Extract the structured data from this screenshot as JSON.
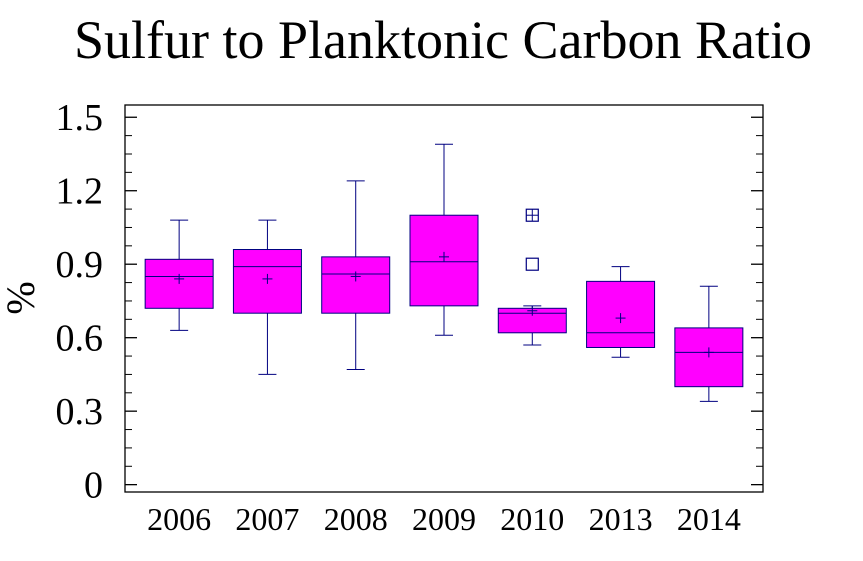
{
  "chart_data": {
    "type": "box",
    "title": "Sulfur to Planktonic Carbon Ratio",
    "xlabel": "",
    "ylabel": "%",
    "ylim": [
      -0.03,
      1.55
    ],
    "yticks": [
      0,
      0.3,
      0.6,
      0.9,
      1.2,
      1.5
    ],
    "ytick_labels": [
      "0",
      "0.3",
      "0.6",
      "0.9",
      "1.2",
      "1.5"
    ],
    "grid": false,
    "colors": {
      "box_fill": "#ff00ff",
      "box_stroke": "#000080",
      "axis": "#000000"
    },
    "categories": [
      "2006",
      "2007",
      "2008",
      "2009",
      "2010",
      "2013",
      "2014"
    ],
    "boxes": [
      {
        "category": "2006",
        "min": 0.63,
        "q1": 0.72,
        "median": 0.85,
        "mean": 0.84,
        "q3": 0.92,
        "max": 1.08,
        "outliers": []
      },
      {
        "category": "2007",
        "min": 0.45,
        "q1": 0.7,
        "median": 0.89,
        "mean": 0.84,
        "q3": 0.96,
        "max": 1.08,
        "outliers": []
      },
      {
        "category": "2008",
        "min": 0.47,
        "q1": 0.7,
        "median": 0.86,
        "mean": 0.85,
        "q3": 0.93,
        "max": 1.24,
        "outliers": []
      },
      {
        "category": "2009",
        "min": 0.61,
        "q1": 0.73,
        "median": 0.91,
        "mean": 0.93,
        "q3": 1.1,
        "max": 1.39,
        "outliers": []
      },
      {
        "category": "2010",
        "min": 0.57,
        "q1": 0.62,
        "median": 0.7,
        "mean": 0.71,
        "q3": 0.72,
        "max": 0.73,
        "outliers": [
          0.9,
          1.1
        ],
        "extreme_outliers": [
          1.1
        ]
      },
      {
        "category": "2013",
        "min": 0.52,
        "q1": 0.56,
        "median": 0.62,
        "mean": 0.68,
        "q3": 0.83,
        "max": 0.89,
        "outliers": []
      },
      {
        "category": "2014",
        "min": 0.34,
        "q1": 0.4,
        "median": 0.54,
        "mean": 0.54,
        "q3": 0.64,
        "max": 0.81,
        "outliers": []
      }
    ]
  }
}
